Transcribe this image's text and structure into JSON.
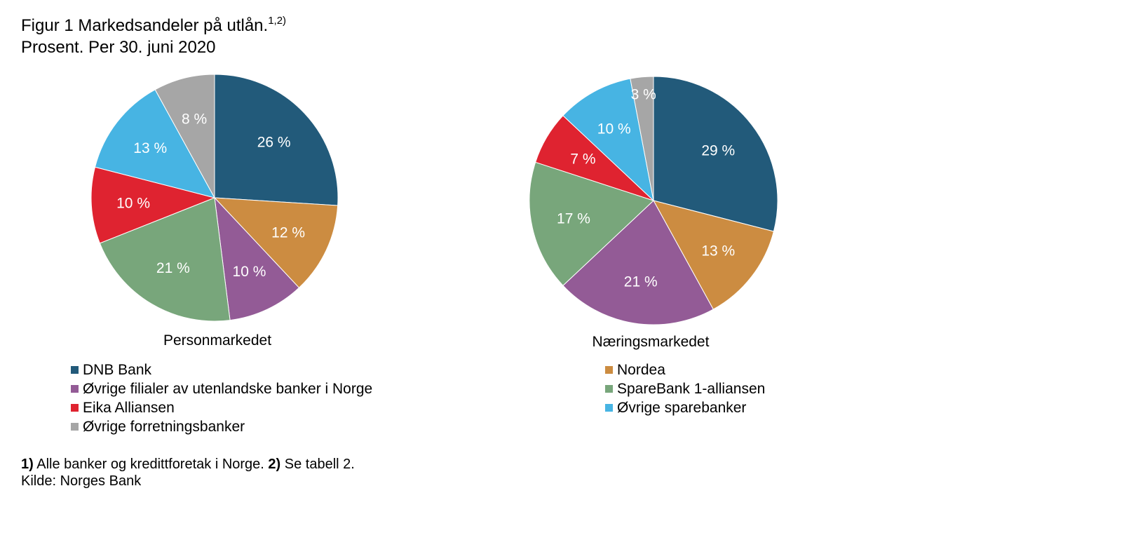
{
  "header": {
    "title": "Figur 1 Markedsandeler på utlån.",
    "title_sup": "1,2)",
    "subtitle": "Prosent. Per 30. juni 2020"
  },
  "legend": {
    "left": [
      {
        "name": "DNB Bank",
        "color": "#225a7a"
      },
      {
        "name": "Øvrige filialer av utenlandske banker i Norge",
        "color": "#935b96"
      },
      {
        "name": "Eika Alliansen",
        "color": "#df2330"
      },
      {
        "name": "Øvrige forretningsbanker",
        "color": "#a6a6a6"
      }
    ],
    "right": [
      {
        "name": "Nordea",
        "color": "#cc8c41"
      },
      {
        "name": "SpareBank 1-alliansen",
        "color": "#78a67b"
      },
      {
        "name": "Øvrige sparebanker",
        "color": "#47b4e3"
      }
    ]
  },
  "chart_data": [
    {
      "type": "pie",
      "title": "Personmarkedet",
      "slices": [
        {
          "name": "DNB Bank",
          "value": 26,
          "label": "26 %",
          "color": "#225a7a"
        },
        {
          "name": "Nordea",
          "value": 12,
          "label": "12 %",
          "color": "#cc8c41"
        },
        {
          "name": "Øvrige filialer av utenlandske banker i Norge",
          "value": 10,
          "label": "10 %",
          "color": "#935b96"
        },
        {
          "name": "SpareBank 1-alliansen",
          "value": 21,
          "label": "21 %",
          "color": "#78a67b"
        },
        {
          "name": "Eika Alliansen",
          "value": 10,
          "label": "10 %",
          "color": "#df2330"
        },
        {
          "name": "Øvrige sparebanker",
          "value": 13,
          "label": "13 %",
          "color": "#47b4e3"
        },
        {
          "name": "Øvrige forretningsbanker",
          "value": 8,
          "label": "8 %",
          "color": "#a6a6a6"
        }
      ]
    },
    {
      "type": "pie",
      "title": "Næringsmarkedet",
      "slices": [
        {
          "name": "DNB Bank",
          "value": 29,
          "label": "29 %",
          "color": "#225a7a"
        },
        {
          "name": "Nordea",
          "value": 13,
          "label": "13 %",
          "color": "#cc8c41"
        },
        {
          "name": "Øvrige filialer av utenlandske banker i Norge",
          "value": 21,
          "label": "21 %",
          "color": "#935b96"
        },
        {
          "name": "SpareBank 1-alliansen",
          "value": 17,
          "label": "17 %",
          "color": "#78a67b"
        },
        {
          "name": "Eika Alliansen",
          "value": 7,
          "label": "7 %",
          "color": "#df2330"
        },
        {
          "name": "Øvrige sparebanker",
          "value": 10,
          "label": "10 %",
          "color": "#47b4e3"
        },
        {
          "name": "Øvrige forretningsbanker",
          "value": 3,
          "label": "3 %",
          "color": "#a6a6a6"
        }
      ]
    }
  ],
  "footnote": {
    "n1_mark": "1)",
    "n1_text": " Alle banker og kredittforetak i Norge. ",
    "n2_mark": "2)",
    "n2_text": " Se tabell 2.",
    "source": "Kilde: Norges Bank"
  }
}
